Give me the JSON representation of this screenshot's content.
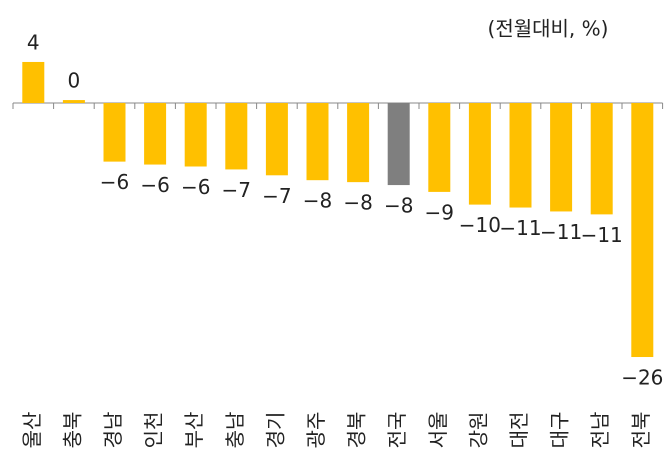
{
  "chart_data": {
    "type": "bar",
    "unit_note": "(전월대비, %)",
    "categories": [
      "울산",
      "충북",
      "경남",
      "인천",
      "부산",
      "충남",
      "경기",
      "광주",
      "경북",
      "전국",
      "서울",
      "강원",
      "대전",
      "대구",
      "전남",
      "전북"
    ],
    "values": [
      4.2,
      0.3,
      -6.0,
      -6.3,
      -6.5,
      -6.8,
      -7.4,
      -7.9,
      -8.1,
      -8.4,
      -9.1,
      -10.4,
      -10.7,
      -11.1,
      -11.4,
      -26.0
    ],
    "value_labels": [
      "4",
      "0",
      "−6",
      "−6",
      "−6",
      "−7",
      "−7",
      "−8",
      "−8",
      "−8",
      "−9",
      "−10",
      "−11",
      "−11",
      "−11",
      "−26"
    ],
    "colors": [
      "#ffc000",
      "#ffc000",
      "#ffc000",
      "#ffc000",
      "#ffc000",
      "#ffc000",
      "#ffc000",
      "#ffc000",
      "#ffc000",
      "#7f7f7f",
      "#ffc000",
      "#ffc000",
      "#ffc000",
      "#ffc000",
      "#ffc000",
      "#ffc000"
    ]
  }
}
